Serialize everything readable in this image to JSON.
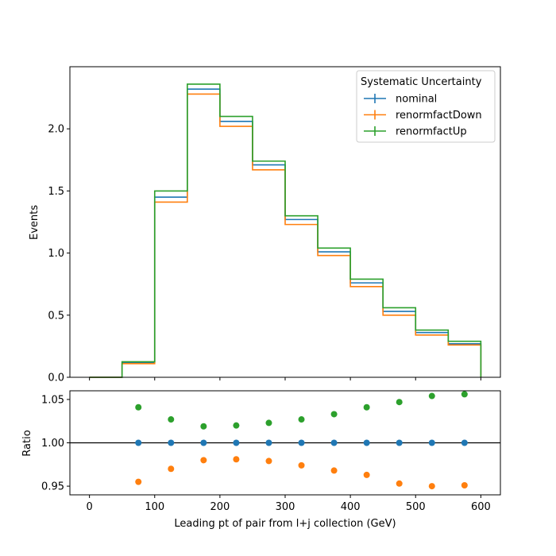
{
  "chart_data": [
    {
      "type": "step-histogram",
      "ylabel": "Events",
      "xlim": [
        -30,
        630
      ],
      "ylim": [
        0,
        2.5
      ],
      "yticks": [
        0.0,
        0.5,
        1.0,
        1.5,
        2.0
      ],
      "ytick_labels": [
        "0.0",
        "0.5",
        "1.0",
        "1.5",
        "2.0"
      ],
      "bin_edges": [
        0,
        50,
        100,
        150,
        200,
        250,
        300,
        350,
        400,
        450,
        500,
        550,
        600
      ],
      "series": [
        {
          "name": "nominal",
          "color": "#1f77b4",
          "values": [
            0.0,
            0.12,
            1.45,
            2.32,
            2.06,
            1.71,
            1.27,
            1.01,
            0.76,
            0.53,
            0.36,
            0.27
          ]
        },
        {
          "name": "renormfactDown",
          "color": "#ff7f0e",
          "values": [
            0.0,
            0.11,
            1.41,
            2.28,
            2.02,
            1.67,
            1.23,
            0.98,
            0.73,
            0.5,
            0.34,
            0.26
          ]
        },
        {
          "name": "renormfactUp",
          "color": "#2ca02c",
          "values": [
            0.0,
            0.125,
            1.5,
            2.36,
            2.1,
            1.74,
            1.3,
            1.04,
            0.79,
            0.56,
            0.38,
            0.29
          ]
        }
      ],
      "legend": {
        "title": "Systematic Uncertainty",
        "placement": "top-right"
      }
    },
    {
      "type": "scatter",
      "xlabel": "Leading pt of pair from l+j collection (GeV)",
      "ylabel": "Ratio",
      "xlim": [
        -30,
        630
      ],
      "ylim": [
        0.94,
        1.06
      ],
      "xticks": [
        0,
        100,
        200,
        300,
        400,
        500,
        600
      ],
      "xtick_labels": [
        "0",
        "100",
        "200",
        "300",
        "400",
        "500",
        "600"
      ],
      "yticks": [
        0.95,
        1.0,
        1.05
      ],
      "ytick_labels": [
        "0.95",
        "1.00",
        "1.05"
      ],
      "reference_line": 1.0,
      "x": [
        75,
        125,
        175,
        225,
        275,
        325,
        375,
        425,
        475,
        525,
        575
      ],
      "series": [
        {
          "name": "nominal",
          "color": "#1f77b4",
          "values": [
            1.0,
            1.0,
            1.0,
            1.0,
            1.0,
            1.0,
            1.0,
            1.0,
            1.0,
            1.0,
            1.0
          ]
        },
        {
          "name": "renormfactDown",
          "color": "#ff7f0e",
          "values": [
            0.955,
            0.97,
            0.98,
            0.981,
            0.979,
            0.974,
            0.968,
            0.963,
            0.953,
            0.95,
            0.951
          ]
        },
        {
          "name": "renormfactUp",
          "color": "#2ca02c",
          "values": [
            1.041,
            1.027,
            1.019,
            1.02,
            1.023,
            1.027,
            1.033,
            1.041,
            1.047,
            1.054,
            1.056
          ]
        }
      ]
    }
  ]
}
